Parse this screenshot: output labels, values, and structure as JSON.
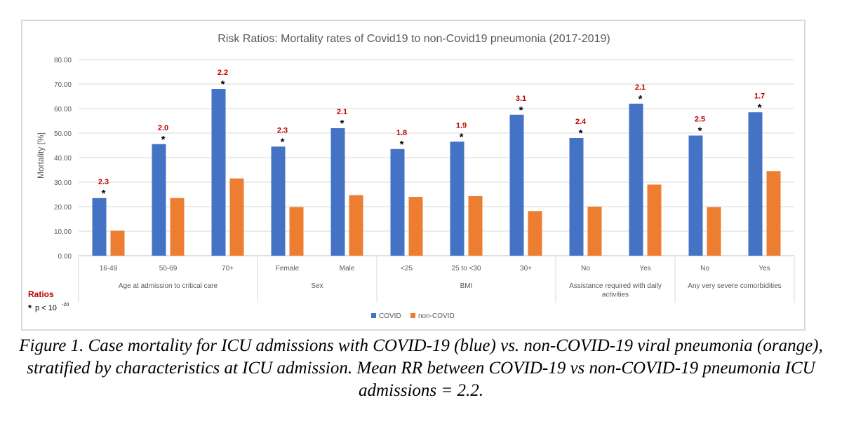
{
  "chart_data": {
    "type": "bar",
    "title": "Risk Ratios: Mortality rates of Covid19 to non-Covid19 pneumonia (2017-2019)",
    "ylabel": "Mortality [%]",
    "xlabel": "",
    "ylim": [
      0,
      80
    ],
    "yticks": [
      "0.00",
      "10.00",
      "20.00",
      "30.00",
      "40.00",
      "50.00",
      "60.00",
      "70.00",
      "80.00"
    ],
    "grid": true,
    "categories": [
      "16-49",
      "50-69",
      "70+",
      "Female",
      "Male",
      "<25",
      "25 to <30",
      "30+",
      "No",
      "Yes",
      "No",
      "Yes"
    ],
    "groups": [
      {
        "label": "Age at admission to critical care",
        "span": 3
      },
      {
        "label": "Sex",
        "span": 2
      },
      {
        "label": "BMI",
        "span": 3
      },
      {
        "label": "Assistance required with daily activities",
        "span": 2
      },
      {
        "label": "Any very severe comorbidities",
        "span": 2
      }
    ],
    "series": [
      {
        "name": "COVID",
        "color": "#4472c4",
        "values": [
          23.5,
          45.5,
          68.0,
          44.5,
          52.0,
          43.5,
          46.5,
          57.5,
          48.0,
          62.0,
          49.0,
          58.5
        ]
      },
      {
        "name": "non-COVID",
        "color": "#ed7d31",
        "values": [
          10.2,
          23.5,
          31.5,
          19.8,
          24.7,
          24.0,
          24.3,
          18.2,
          20.0,
          29.0,
          19.8,
          34.5
        ]
      }
    ],
    "risk_ratios": [
      "2.3",
      "2.0",
      "2.2",
      "2.3",
      "2.1",
      "1.8",
      "1.9",
      "3.1",
      "2.4",
      "2.1",
      "2.5",
      "1.7"
    ],
    "significance_marker": "*",
    "ratio_color": "#c00000",
    "legend_position": "bottom-center",
    "annotation": {
      "title": "Ratios",
      "note_marker": "*",
      "note_text": "p < 10",
      "note_exponent": "-20"
    }
  },
  "caption": "Figure 1. Case mortality for ICU admissions with COVID-19 (blue) vs. non-COVID-19 viral pneumonia (orange), stratified by characteristics at ICU admission. Mean RR between COVID-19 vs non-COVID-19 pneumonia ICU admissions = 2.2."
}
